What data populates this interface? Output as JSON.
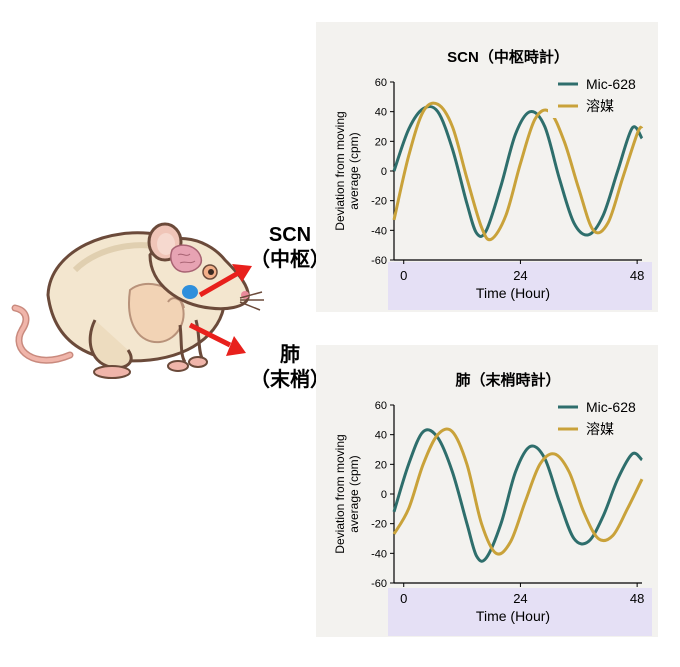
{
  "labels": {
    "scn_main": "SCN",
    "scn_sub": "（中枢）",
    "lung_main": "肺",
    "lung_sub": "（末梢）"
  },
  "chart_data": [
    {
      "type": "line",
      "title": "SCN（中枢時計）",
      "xlabel": "Time (Hour)",
      "ylabel_lines": [
        "Deviation from moving",
        "average (cpm)"
      ],
      "xlim": [
        -2,
        49
      ],
      "ylim": [
        -60,
        60
      ],
      "xticks": [
        0,
        24,
        48
      ],
      "yticks": [
        -60,
        -40,
        -20,
        0,
        20,
        40,
        60
      ],
      "legend_position": "top-right",
      "series": [
        {
          "name": "Mic-628",
          "color": "#2e6e6c",
          "points": [
            [
              -2,
              0
            ],
            [
              1,
              28
            ],
            [
              4,
              42
            ],
            [
              7,
              40
            ],
            [
              10,
              15
            ],
            [
              13,
              -22
            ],
            [
              15,
              -42
            ],
            [
              17,
              -40
            ],
            [
              20,
              -10
            ],
            [
              23,
              25
            ],
            [
              26,
              40
            ],
            [
              29,
              30
            ],
            [
              32,
              -5
            ],
            [
              35,
              -35
            ],
            [
              38,
              -43
            ],
            [
              41,
              -30
            ],
            [
              44,
              0
            ],
            [
              47,
              29
            ],
            [
              49,
              22
            ]
          ]
        },
        {
          "name": "溶媒",
          "color": "#c9a23a",
          "points": [
            [
              -2,
              -33
            ],
            [
              1,
              10
            ],
            [
              4,
              40
            ],
            [
              7,
              45
            ],
            [
              10,
              30
            ],
            [
              13,
              -5
            ],
            [
              16,
              -38
            ],
            [
              18,
              -46
            ],
            [
              21,
              -30
            ],
            [
              24,
              5
            ],
            [
              27,
              35
            ],
            [
              30,
              40
            ],
            [
              33,
              20
            ],
            [
              36,
              -12
            ],
            [
              39,
              -40
            ],
            [
              42,
              -35
            ],
            [
              45,
              -5
            ],
            [
              48,
              25
            ],
            [
              49,
              30
            ]
          ]
        }
      ]
    },
    {
      "type": "line",
      "title": "肺（末梢時計）",
      "xlabel": "Time (Hour)",
      "ylabel_lines": [
        "Deviation from moving",
        "average (cpm)"
      ],
      "xlim": [
        -2,
        49
      ],
      "ylim": [
        -60,
        60
      ],
      "xticks": [
        0,
        24,
        48
      ],
      "yticks": [
        -60,
        -40,
        -20,
        0,
        20,
        40,
        60
      ],
      "legend_position": "top-right",
      "series": [
        {
          "name": "Mic-628",
          "color": "#2e6e6c",
          "points": [
            [
              -2,
              -12
            ],
            [
              1,
              20
            ],
            [
              4,
              42
            ],
            [
              7,
              38
            ],
            [
              10,
              15
            ],
            [
              13,
              -20
            ],
            [
              15,
              -42
            ],
            [
              17,
              -43
            ],
            [
              20,
              -20
            ],
            [
              23,
              15
            ],
            [
              26,
              32
            ],
            [
              29,
              24
            ],
            [
              32,
              -5
            ],
            [
              35,
              -30
            ],
            [
              38,
              -32
            ],
            [
              41,
              -15
            ],
            [
              44,
              10
            ],
            [
              47,
              27
            ],
            [
              49,
              23
            ]
          ]
        },
        {
          "name": "溶媒",
          "color": "#c9a23a",
          "points": [
            [
              -2,
              -27
            ],
            [
              1,
              -10
            ],
            [
              4,
              20
            ],
            [
              7,
              40
            ],
            [
              10,
              42
            ],
            [
              13,
              20
            ],
            [
              16,
              -20
            ],
            [
              19,
              -40
            ],
            [
              22,
              -32
            ],
            [
              25,
              -5
            ],
            [
              28,
              20
            ],
            [
              31,
              27
            ],
            [
              34,
              15
            ],
            [
              37,
              -12
            ],
            [
              40,
              -30
            ],
            [
              43,
              -28
            ],
            [
              46,
              -10
            ],
            [
              49,
              10
            ]
          ]
        }
      ]
    }
  ]
}
